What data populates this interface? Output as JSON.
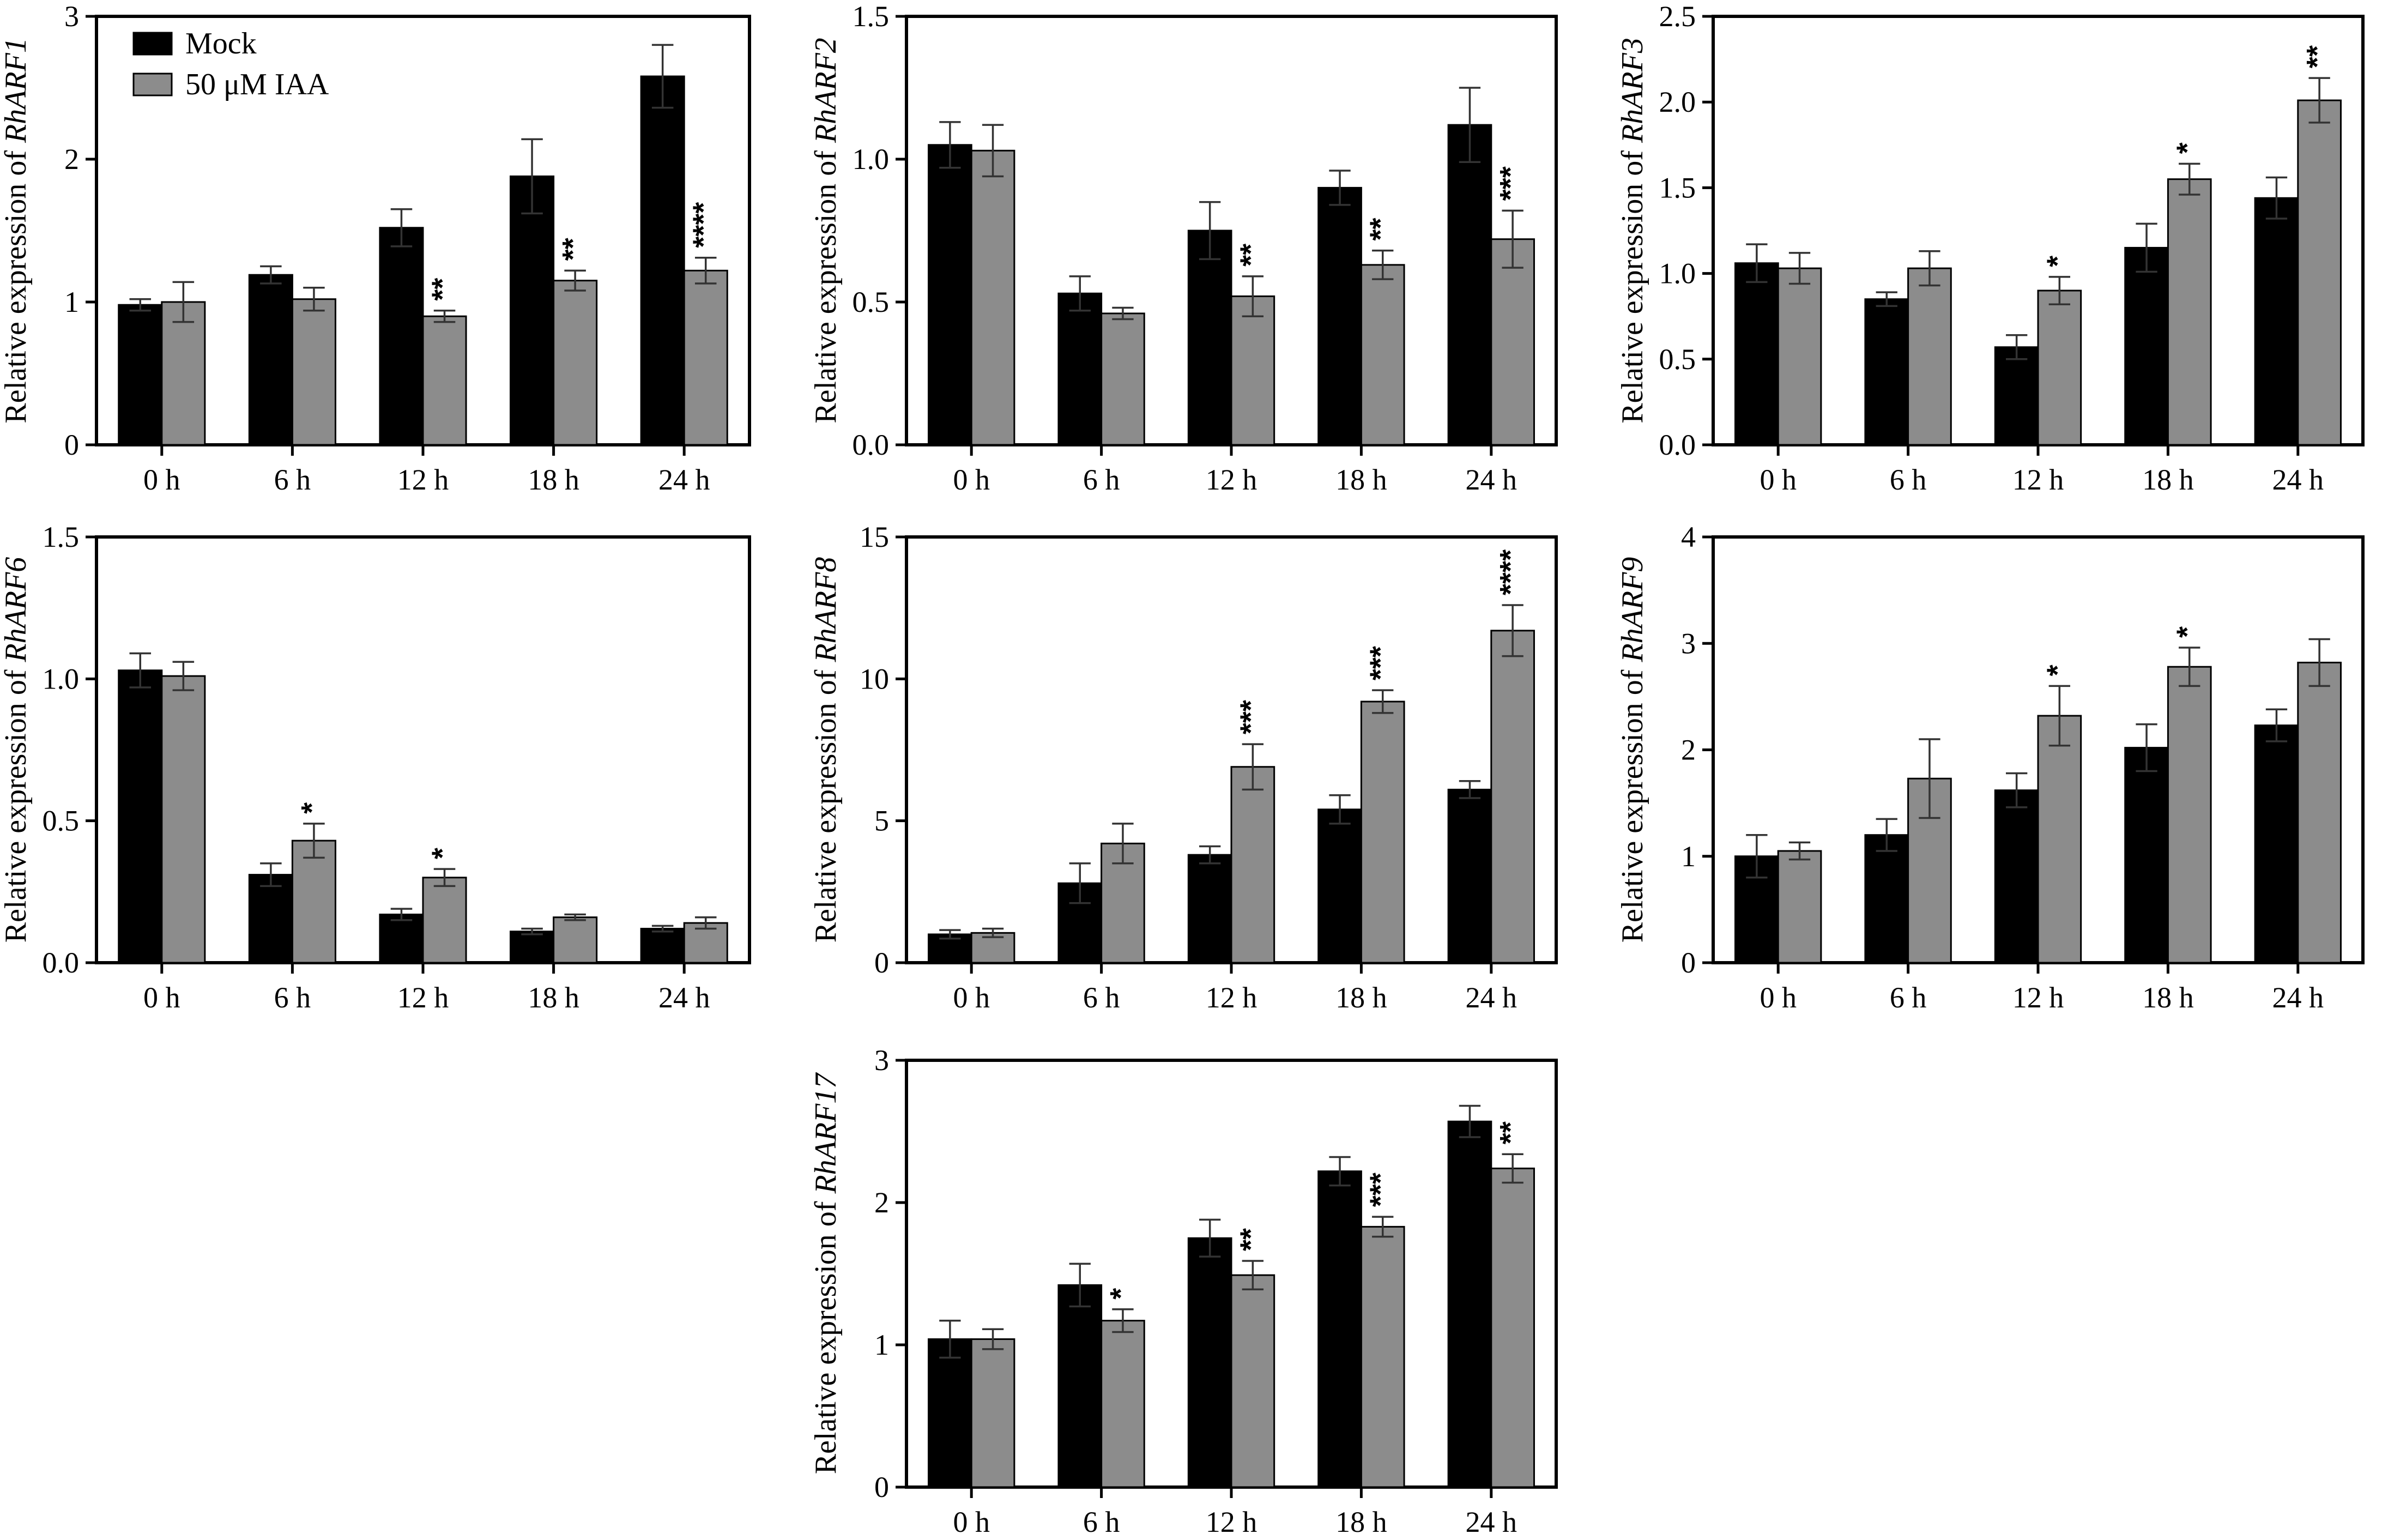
{
  "legend": [
    {
      "label": "Mock",
      "color": "#000000"
    },
    {
      "label": "50 μM IAA",
      "color": "#8c8c8c"
    }
  ],
  "chart_data": [
    {
      "type": "bar",
      "gene": "RhARF1",
      "ylabel_prefix": "Relative expression of ",
      "ylim": [
        0,
        3
      ],
      "yticks": [
        "0",
        "1",
        "2",
        "3"
      ],
      "categories": [
        "0 h",
        "6 h",
        "12 h",
        "18 h",
        "24 h"
      ],
      "series": [
        {
          "name": "Mock",
          "values": [
            0.98,
            1.19,
            1.52,
            1.88,
            2.58
          ],
          "errors": [
            0.04,
            0.06,
            0.13,
            0.26,
            0.22
          ]
        },
        {
          "name": "50 μM IAA",
          "values": [
            1.0,
            1.02,
            0.9,
            1.15,
            1.22
          ],
          "errors": [
            0.14,
            0.08,
            0.04,
            0.07,
            0.09
          ]
        }
      ],
      "significance": [
        "",
        "",
        "**",
        "**",
        "****"
      ]
    },
    {
      "type": "bar",
      "gene": "RhARF2",
      "ylabel_prefix": "Relative expression of ",
      "ylim": [
        0,
        1.5
      ],
      "yticks": [
        "0.0",
        "0.5",
        "1.0",
        "1.5"
      ],
      "categories": [
        "0 h",
        "6 h",
        "12 h",
        "18 h",
        "24 h"
      ],
      "series": [
        {
          "name": "Mock",
          "values": [
            1.05,
            0.53,
            0.75,
            0.9,
            1.12
          ],
          "errors": [
            0.08,
            0.06,
            0.1,
            0.06,
            0.13
          ]
        },
        {
          "name": "50 μM IAA",
          "values": [
            1.03,
            0.46,
            0.52,
            0.63,
            0.72
          ],
          "errors": [
            0.09,
            0.02,
            0.07,
            0.05,
            0.1
          ]
        }
      ],
      "significance": [
        "",
        "",
        "**",
        "**",
        "***"
      ]
    },
    {
      "type": "bar",
      "gene": "RhARF3",
      "ylabel_prefix": "Relative expression of ",
      "ylim": [
        0,
        2.5
      ],
      "yticks": [
        "0.0",
        "0.5",
        "1.0",
        "1.5",
        "2.0",
        "2.5"
      ],
      "categories": [
        "0 h",
        "6 h",
        "12 h",
        "18 h",
        "24 h"
      ],
      "series": [
        {
          "name": "Mock",
          "values": [
            1.06,
            0.85,
            0.57,
            1.15,
            1.44
          ],
          "errors": [
            0.11,
            0.04,
            0.07,
            0.14,
            0.12
          ]
        },
        {
          "name": "50 μM IAA",
          "values": [
            1.03,
            1.03,
            0.9,
            1.55,
            2.01
          ],
          "errors": [
            0.09,
            0.1,
            0.08,
            0.09,
            0.13
          ]
        }
      ],
      "significance": [
        "",
        "",
        "*",
        "*",
        "**"
      ]
    },
    {
      "type": "bar",
      "gene": "RhARF6",
      "ylabel_prefix": "Relative expression of ",
      "ylim": [
        0,
        1.5
      ],
      "yticks": [
        "0.0",
        "0.5",
        "1.0",
        "1.5"
      ],
      "categories": [
        "0 h",
        "6 h",
        "12 h",
        "18 h",
        "24 h"
      ],
      "series": [
        {
          "name": "Mock",
          "values": [
            1.03,
            0.31,
            0.17,
            0.11,
            0.12
          ],
          "errors": [
            0.06,
            0.04,
            0.02,
            0.01,
            0.01
          ]
        },
        {
          "name": "50 μM IAA",
          "values": [
            1.01,
            0.43,
            0.3,
            0.16,
            0.14
          ],
          "errors": [
            0.05,
            0.06,
            0.03,
            0.01,
            0.02
          ]
        }
      ],
      "significance": [
        "",
        "*",
        "*",
        "",
        ""
      ]
    },
    {
      "type": "bar",
      "gene": "RhARF8",
      "ylabel_prefix": "Relative expression of ",
      "ylim": [
        0,
        15
      ],
      "yticks": [
        "0",
        "5",
        "10",
        "15"
      ],
      "categories": [
        "0 h",
        "6 h",
        "12 h",
        "18 h",
        "24 h"
      ],
      "series": [
        {
          "name": "Mock",
          "values": [
            1.0,
            2.8,
            3.8,
            5.4,
            6.1
          ],
          "errors": [
            0.15,
            0.7,
            0.3,
            0.5,
            0.3
          ]
        },
        {
          "name": "50 μM IAA",
          "values": [
            1.05,
            4.2,
            6.9,
            9.2,
            11.7
          ],
          "errors": [
            0.15,
            0.7,
            0.8,
            0.4,
            0.9
          ]
        }
      ],
      "significance": [
        "",
        "",
        "***",
        "***",
        "****"
      ]
    },
    {
      "type": "bar",
      "gene": "RhARF9",
      "ylabel_prefix": "Relative expression of ",
      "ylim": [
        0,
        4
      ],
      "yticks": [
        "0",
        "1",
        "2",
        "3",
        "4"
      ],
      "categories": [
        "0 h",
        "6 h",
        "12 h",
        "18 h",
        "24 h"
      ],
      "series": [
        {
          "name": "Mock",
          "values": [
            1.0,
            1.2,
            1.62,
            2.02,
            2.23
          ],
          "errors": [
            0.2,
            0.15,
            0.16,
            0.22,
            0.15
          ]
        },
        {
          "name": "50 μM IAA",
          "values": [
            1.05,
            1.73,
            2.32,
            2.78,
            2.82
          ],
          "errors": [
            0.08,
            0.37,
            0.28,
            0.18,
            0.22
          ]
        }
      ],
      "significance": [
        "",
        "",
        "*",
        "*",
        ""
      ]
    },
    {
      "type": "bar",
      "gene": "RhARF17",
      "ylabel_prefix": "Relative expression of ",
      "ylim": [
        0,
        3
      ],
      "yticks": [
        "0",
        "1",
        "2",
        "3"
      ],
      "categories": [
        "0 h",
        "6 h",
        "12 h",
        "18 h",
        "24 h"
      ],
      "series": [
        {
          "name": "Mock",
          "values": [
            1.04,
            1.42,
            1.75,
            2.22,
            2.57
          ],
          "errors": [
            0.13,
            0.15,
            0.13,
            0.1,
            0.11
          ]
        },
        {
          "name": "50 μM IAA",
          "values": [
            1.04,
            1.17,
            1.49,
            1.83,
            2.24
          ],
          "errors": [
            0.07,
            0.08,
            0.1,
            0.07,
            0.1
          ]
        }
      ],
      "significance": [
        "",
        "*",
        "**",
        "***",
        "**"
      ]
    }
  ]
}
